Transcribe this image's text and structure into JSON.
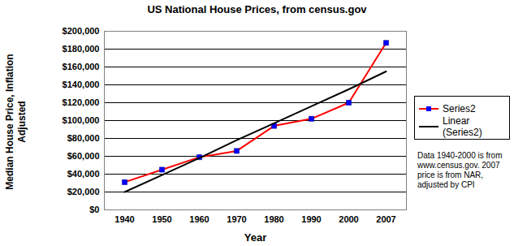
{
  "chart_data": {
    "type": "line",
    "title": "US National House Prices, from census.gov",
    "x_label": "Year",
    "y_label": "Median House Price, Inflation Adjusted",
    "categories": [
      "1940",
      "1950",
      "1960",
      "1970",
      "1980",
      "1990",
      "2000",
      "2007"
    ],
    "series": [
      {
        "name": "Series2",
        "color": "#ff0000",
        "marker": "square",
        "line_style": "solid",
        "values": [
          31000,
          45000,
          59000,
          66000,
          94000,
          102000,
          120000,
          187000
        ]
      },
      {
        "name": "Linear (Series2)",
        "color": "#000000",
        "line_style": "solid",
        "values": [
          20000,
          39000,
          58000,
          78000,
          97000,
          116000,
          135000,
          155000
        ]
      }
    ],
    "ylim": [
      0,
      200000
    ],
    "yticks": [
      {
        "value": 0,
        "label": "$0"
      },
      {
        "value": 20000,
        "label": "$20,000"
      },
      {
        "value": 40000,
        "label": "$40,000"
      },
      {
        "value": 60000,
        "label": "$60,000"
      },
      {
        "value": 80000,
        "label": "$80,000"
      },
      {
        "value": 100000,
        "label": "$100,000"
      },
      {
        "value": 120000,
        "label": "$120,000"
      },
      {
        "value": 140000,
        "label": "$140,000"
      },
      {
        "value": 160000,
        "label": "$160,000"
      },
      {
        "value": 180000,
        "label": "$180,000"
      },
      {
        "value": 200000,
        "label": "$200,000"
      }
    ],
    "grid": true,
    "legend": "right",
    "annotations": [
      "Data 1940-2000 is from www.census.gov. 2007 price is from NAR, adjusted by CPI"
    ]
  }
}
